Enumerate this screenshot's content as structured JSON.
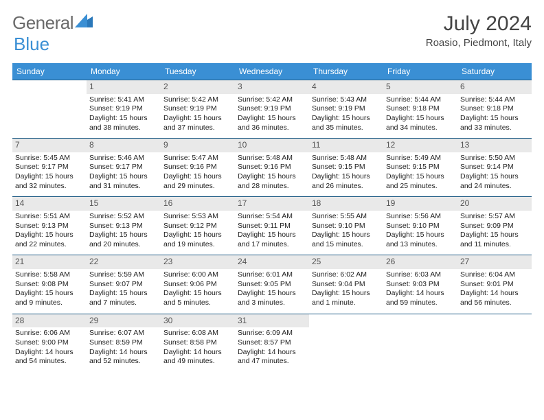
{
  "brand": {
    "part1": "General",
    "part2": "Blue"
  },
  "title": "July 2024",
  "subtitle": "Roasio, Piedmont, Italy",
  "accent_color": "#3a8fd4",
  "rule_color": "#1f5c86",
  "daybg_color": "#e9e9e9",
  "day_names": [
    "Sunday",
    "Monday",
    "Tuesday",
    "Wednesday",
    "Thursday",
    "Friday",
    "Saturday"
  ],
  "weeks": [
    [
      {
        "n": "",
        "sr": "",
        "ss": "",
        "dl": ""
      },
      {
        "n": "1",
        "sr": "Sunrise: 5:41 AM",
        "ss": "Sunset: 9:19 PM",
        "dl": "Daylight: 15 hours and 38 minutes."
      },
      {
        "n": "2",
        "sr": "Sunrise: 5:42 AM",
        "ss": "Sunset: 9:19 PM",
        "dl": "Daylight: 15 hours and 37 minutes."
      },
      {
        "n": "3",
        "sr": "Sunrise: 5:42 AM",
        "ss": "Sunset: 9:19 PM",
        "dl": "Daylight: 15 hours and 36 minutes."
      },
      {
        "n": "4",
        "sr": "Sunrise: 5:43 AM",
        "ss": "Sunset: 9:19 PM",
        "dl": "Daylight: 15 hours and 35 minutes."
      },
      {
        "n": "5",
        "sr": "Sunrise: 5:44 AM",
        "ss": "Sunset: 9:18 PM",
        "dl": "Daylight: 15 hours and 34 minutes."
      },
      {
        "n": "6",
        "sr": "Sunrise: 5:44 AM",
        "ss": "Sunset: 9:18 PM",
        "dl": "Daylight: 15 hours and 33 minutes."
      }
    ],
    [
      {
        "n": "7",
        "sr": "Sunrise: 5:45 AM",
        "ss": "Sunset: 9:17 PM",
        "dl": "Daylight: 15 hours and 32 minutes."
      },
      {
        "n": "8",
        "sr": "Sunrise: 5:46 AM",
        "ss": "Sunset: 9:17 PM",
        "dl": "Daylight: 15 hours and 31 minutes."
      },
      {
        "n": "9",
        "sr": "Sunrise: 5:47 AM",
        "ss": "Sunset: 9:16 PM",
        "dl": "Daylight: 15 hours and 29 minutes."
      },
      {
        "n": "10",
        "sr": "Sunrise: 5:48 AM",
        "ss": "Sunset: 9:16 PM",
        "dl": "Daylight: 15 hours and 28 minutes."
      },
      {
        "n": "11",
        "sr": "Sunrise: 5:48 AM",
        "ss": "Sunset: 9:15 PM",
        "dl": "Daylight: 15 hours and 26 minutes."
      },
      {
        "n": "12",
        "sr": "Sunrise: 5:49 AM",
        "ss": "Sunset: 9:15 PM",
        "dl": "Daylight: 15 hours and 25 minutes."
      },
      {
        "n": "13",
        "sr": "Sunrise: 5:50 AM",
        "ss": "Sunset: 9:14 PM",
        "dl": "Daylight: 15 hours and 24 minutes."
      }
    ],
    [
      {
        "n": "14",
        "sr": "Sunrise: 5:51 AM",
        "ss": "Sunset: 9:13 PM",
        "dl": "Daylight: 15 hours and 22 minutes."
      },
      {
        "n": "15",
        "sr": "Sunrise: 5:52 AM",
        "ss": "Sunset: 9:13 PM",
        "dl": "Daylight: 15 hours and 20 minutes."
      },
      {
        "n": "16",
        "sr": "Sunrise: 5:53 AM",
        "ss": "Sunset: 9:12 PM",
        "dl": "Daylight: 15 hours and 19 minutes."
      },
      {
        "n": "17",
        "sr": "Sunrise: 5:54 AM",
        "ss": "Sunset: 9:11 PM",
        "dl": "Daylight: 15 hours and 17 minutes."
      },
      {
        "n": "18",
        "sr": "Sunrise: 5:55 AM",
        "ss": "Sunset: 9:10 PM",
        "dl": "Daylight: 15 hours and 15 minutes."
      },
      {
        "n": "19",
        "sr": "Sunrise: 5:56 AM",
        "ss": "Sunset: 9:10 PM",
        "dl": "Daylight: 15 hours and 13 minutes."
      },
      {
        "n": "20",
        "sr": "Sunrise: 5:57 AM",
        "ss": "Sunset: 9:09 PM",
        "dl": "Daylight: 15 hours and 11 minutes."
      }
    ],
    [
      {
        "n": "21",
        "sr": "Sunrise: 5:58 AM",
        "ss": "Sunset: 9:08 PM",
        "dl": "Daylight: 15 hours and 9 minutes."
      },
      {
        "n": "22",
        "sr": "Sunrise: 5:59 AM",
        "ss": "Sunset: 9:07 PM",
        "dl": "Daylight: 15 hours and 7 minutes."
      },
      {
        "n": "23",
        "sr": "Sunrise: 6:00 AM",
        "ss": "Sunset: 9:06 PM",
        "dl": "Daylight: 15 hours and 5 minutes."
      },
      {
        "n": "24",
        "sr": "Sunrise: 6:01 AM",
        "ss": "Sunset: 9:05 PM",
        "dl": "Daylight: 15 hours and 3 minutes."
      },
      {
        "n": "25",
        "sr": "Sunrise: 6:02 AM",
        "ss": "Sunset: 9:04 PM",
        "dl": "Daylight: 15 hours and 1 minute."
      },
      {
        "n": "26",
        "sr": "Sunrise: 6:03 AM",
        "ss": "Sunset: 9:03 PM",
        "dl": "Daylight: 14 hours and 59 minutes."
      },
      {
        "n": "27",
        "sr": "Sunrise: 6:04 AM",
        "ss": "Sunset: 9:01 PM",
        "dl": "Daylight: 14 hours and 56 minutes."
      }
    ],
    [
      {
        "n": "28",
        "sr": "Sunrise: 6:06 AM",
        "ss": "Sunset: 9:00 PM",
        "dl": "Daylight: 14 hours and 54 minutes."
      },
      {
        "n": "29",
        "sr": "Sunrise: 6:07 AM",
        "ss": "Sunset: 8:59 PM",
        "dl": "Daylight: 14 hours and 52 minutes."
      },
      {
        "n": "30",
        "sr": "Sunrise: 6:08 AM",
        "ss": "Sunset: 8:58 PM",
        "dl": "Daylight: 14 hours and 49 minutes."
      },
      {
        "n": "31",
        "sr": "Sunrise: 6:09 AM",
        "ss": "Sunset: 8:57 PM",
        "dl": "Daylight: 14 hours and 47 minutes."
      },
      {
        "n": "",
        "sr": "",
        "ss": "",
        "dl": ""
      },
      {
        "n": "",
        "sr": "",
        "ss": "",
        "dl": ""
      },
      {
        "n": "",
        "sr": "",
        "ss": "",
        "dl": ""
      }
    ]
  ]
}
